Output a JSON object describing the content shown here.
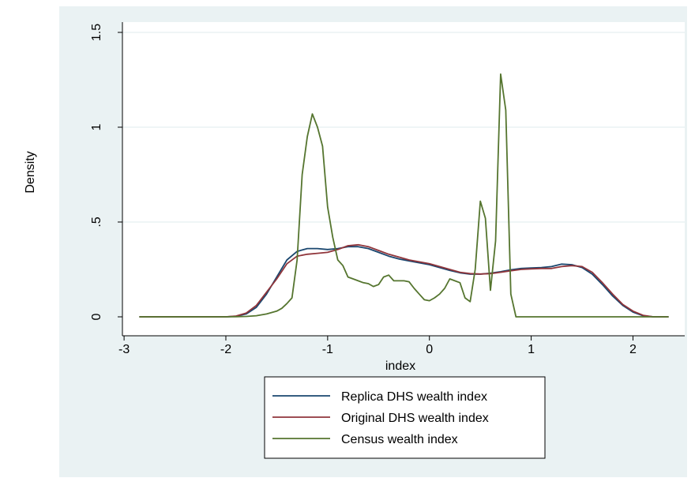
{
  "chart_data": {
    "type": "line",
    "title": "",
    "xlabel": "index",
    "ylabel": "Density",
    "xlim": [
      -2.9,
      2.4
    ],
    "ylim": [
      0,
      1.5
    ],
    "xticks": [
      -3,
      -2,
      -1,
      0,
      1,
      2
    ],
    "xtick_labels": [
      "-3",
      "-2",
      "-1",
      "0",
      "1",
      "2"
    ],
    "yticks": [
      0,
      0.5,
      1,
      1.5
    ],
    "ytick_labels": [
      "0",
      ".5",
      "1",
      "1.5"
    ],
    "grid": "horizontal",
    "legend_position": "bottom",
    "series": [
      {
        "name": "Replica DHS wealth index",
        "color": "#1a476f",
        "x": [
          -2.85,
          -2.0,
          -1.9,
          -1.8,
          -1.7,
          -1.6,
          -1.5,
          -1.4,
          -1.3,
          -1.2,
          -1.1,
          -1.0,
          -0.9,
          -0.8,
          -0.7,
          -0.6,
          -0.5,
          -0.4,
          -0.3,
          -0.2,
          -0.1,
          0.0,
          0.1,
          0.2,
          0.3,
          0.4,
          0.5,
          0.6,
          0.7,
          0.8,
          0.9,
          1.0,
          1.1,
          1.2,
          1.3,
          1.4,
          1.5,
          1.6,
          1.7,
          1.8,
          1.9,
          2.0,
          2.1,
          2.2,
          2.35
        ],
        "y": [
          0,
          0,
          0.003,
          0.015,
          0.05,
          0.12,
          0.21,
          0.3,
          0.345,
          0.36,
          0.36,
          0.355,
          0.36,
          0.37,
          0.37,
          0.36,
          0.34,
          0.32,
          0.305,
          0.295,
          0.285,
          0.275,
          0.26,
          0.245,
          0.232,
          0.225,
          0.225,
          0.23,
          0.238,
          0.248,
          0.255,
          0.258,
          0.26,
          0.265,
          0.278,
          0.275,
          0.26,
          0.225,
          0.17,
          0.11,
          0.06,
          0.025,
          0.006,
          0,
          0
        ]
      },
      {
        "name": "Original DHS wealth index",
        "color": "#90353b",
        "x": [
          -2.85,
          -2.0,
          -1.9,
          -1.8,
          -1.7,
          -1.6,
          -1.5,
          -1.4,
          -1.3,
          -1.2,
          -1.1,
          -1.0,
          -0.9,
          -0.8,
          -0.7,
          -0.6,
          -0.5,
          -0.4,
          -0.3,
          -0.2,
          -0.1,
          0.0,
          0.1,
          0.2,
          0.3,
          0.4,
          0.5,
          0.6,
          0.7,
          0.8,
          0.9,
          1.0,
          1.1,
          1.2,
          1.3,
          1.4,
          1.5,
          1.6,
          1.7,
          1.8,
          1.9,
          2.0,
          2.1,
          2.2,
          2.35
        ],
        "y": [
          0,
          0,
          0.004,
          0.02,
          0.06,
          0.13,
          0.2,
          0.28,
          0.32,
          0.33,
          0.335,
          0.34,
          0.355,
          0.375,
          0.38,
          0.37,
          0.35,
          0.33,
          0.315,
          0.3,
          0.29,
          0.28,
          0.265,
          0.25,
          0.235,
          0.228,
          0.226,
          0.228,
          0.235,
          0.243,
          0.25,
          0.253,
          0.255,
          0.255,
          0.265,
          0.27,
          0.265,
          0.235,
          0.18,
          0.12,
          0.065,
          0.03,
          0.008,
          0,
          0
        ]
      },
      {
        "name": "Census wealth index",
        "color": "#55752f",
        "x": [
          -2.85,
          -2.0,
          -1.9,
          -1.8,
          -1.7,
          -1.6,
          -1.5,
          -1.45,
          -1.4,
          -1.35,
          -1.3,
          -1.25,
          -1.2,
          -1.15,
          -1.1,
          -1.05,
          -1.0,
          -0.95,
          -0.9,
          -0.85,
          -0.8,
          -0.75,
          -0.7,
          -0.65,
          -0.6,
          -0.55,
          -0.5,
          -0.45,
          -0.4,
          -0.35,
          -0.3,
          -0.25,
          -0.2,
          -0.15,
          -0.1,
          -0.05,
          0.0,
          0.05,
          0.1,
          0.15,
          0.2,
          0.25,
          0.3,
          0.35,
          0.4,
          0.45,
          0.5,
          0.55,
          0.6,
          0.65,
          0.7,
          0.75,
          0.8,
          0.85,
          0.9,
          0.95,
          1.0,
          1.05,
          1.1,
          1.15,
          1.2,
          1.25,
          1.3,
          1.35,
          1.4,
          1.45,
          1.5,
          1.6,
          1.8,
          2.0,
          2.2,
          2.35
        ],
        "y": [
          0,
          0,
          0.001,
          0.002,
          0.006,
          0.015,
          0.03,
          0.045,
          0.07,
          0.1,
          0.3,
          0.75,
          0.95,
          1.07,
          1.0,
          0.9,
          0.58,
          0.42,
          0.3,
          0.27,
          0.21,
          0.2,
          0.19,
          0.18,
          0.175,
          0.16,
          0.17,
          0.21,
          0.22,
          0.19,
          0.19,
          0.19,
          0.185,
          0.15,
          0.12,
          0.09,
          0.085,
          0.1,
          0.12,
          0.15,
          0.2,
          0.19,
          0.18,
          0.1,
          0.08,
          0.25,
          0.61,
          0.52,
          0.14,
          0.4,
          1.28,
          1.09,
          0.12,
          0.0,
          0,
          0,
          0,
          0,
          0,
          0,
          0,
          0,
          0,
          0,
          0,
          0,
          0,
          0,
          0,
          0,
          0,
          0
        ]
      }
    ]
  }
}
